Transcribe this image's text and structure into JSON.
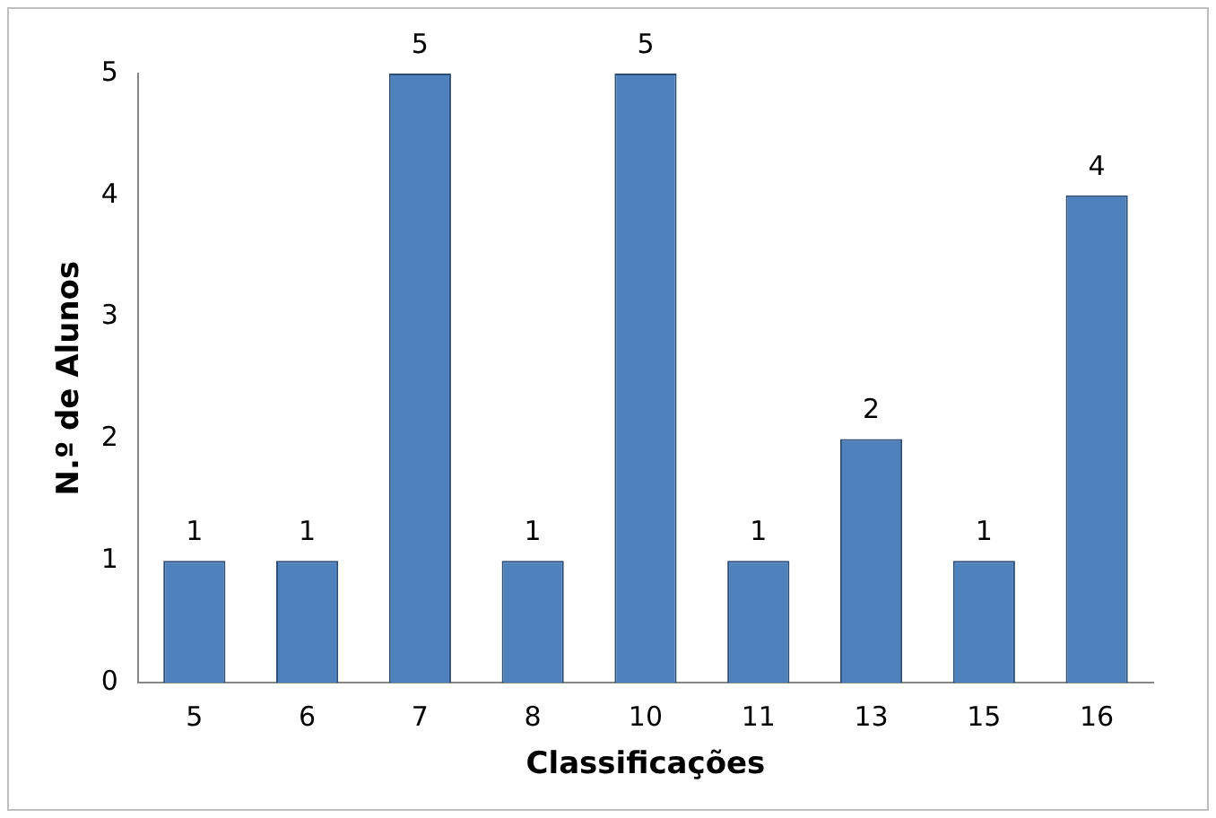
{
  "chart_data": {
    "type": "bar",
    "xlabel": "Classificações",
    "ylabel": "N.º de Alunos",
    "categories": [
      "5",
      "6",
      "7",
      "8",
      "10",
      "11",
      "13",
      "15",
      "16"
    ],
    "values": [
      1,
      1,
      5,
      1,
      5,
      1,
      2,
      1,
      4
    ],
    "color": "#4f81bd",
    "ylim": [
      0,
      5
    ],
    "yticks": [
      0,
      1,
      2,
      3,
      4,
      5
    ],
    "grid": false,
    "legend": false,
    "data_labels": true
  }
}
